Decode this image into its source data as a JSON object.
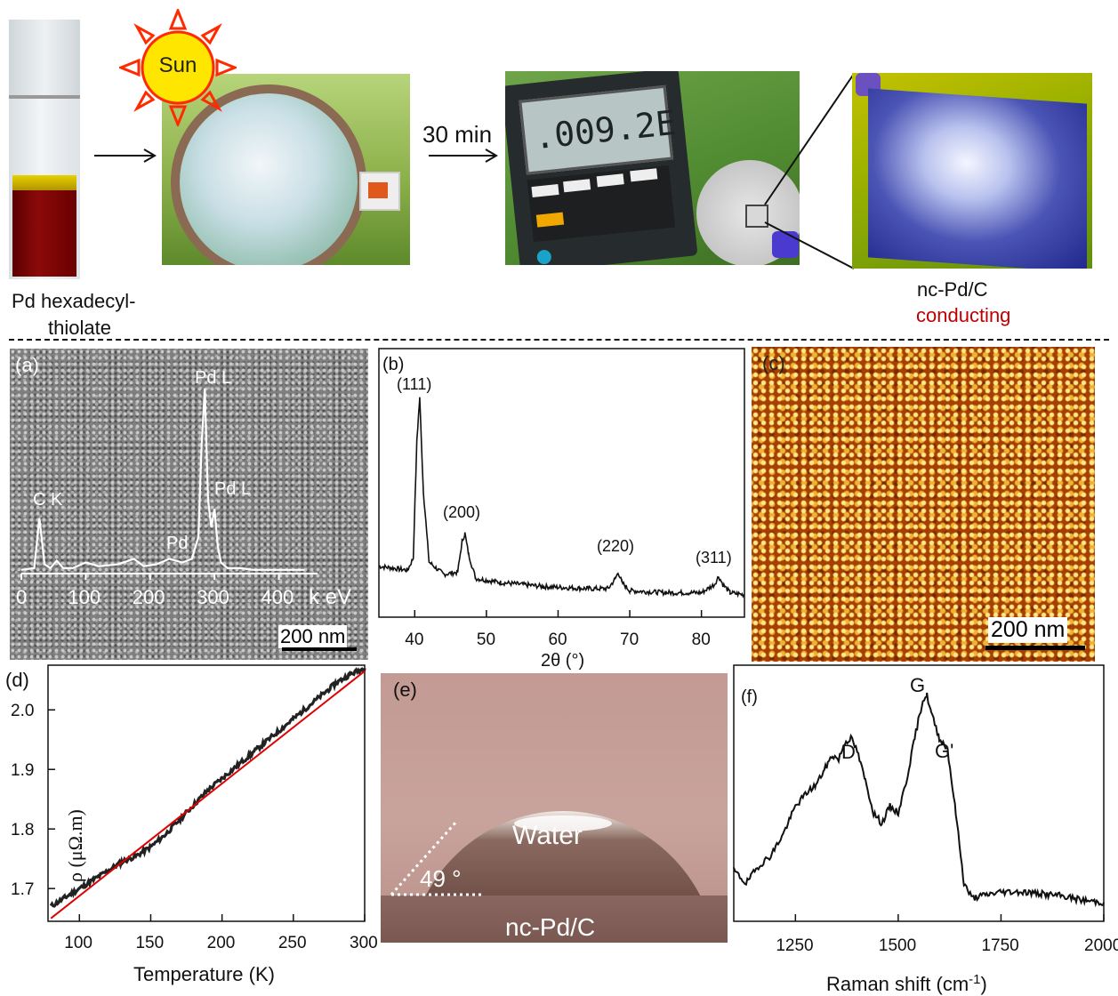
{
  "top_row": {
    "vial_caption_line1": "Pd hexadecyl-",
    "vial_caption_line2": "thiolate",
    "sun_label": "Sun",
    "time_label": "30 min",
    "meter_reading": ".009.2E",
    "film_caption_line1": "nc-Pd/C",
    "film_caption_line2": "conducting",
    "accent_color": "#c00000"
  },
  "panel_a": {
    "label": "(a)",
    "scalebar": "200 nm",
    "peak_labels": [
      "C K",
      "Pd L",
      "Pd L",
      "Pd"
    ],
    "x_ticks": [
      "0",
      "100",
      "200",
      "300",
      "400"
    ],
    "x_unit": "k eV"
  },
  "panel_b": {
    "label": "(b)",
    "xlabel": "2θ (°)",
    "peak_labels": [
      "(111)",
      "(200)",
      "(220)",
      "(311)"
    ]
  },
  "panel_c": {
    "label": "(c)",
    "scalebar": "200 nm"
  },
  "panel_d": {
    "label": "(d)",
    "xlabel": "Temperature (K)",
    "ylabel": "ρ (μΩ.m)"
  },
  "panel_e": {
    "label": "(e)",
    "water_label": "Water",
    "angle_label": "49 °",
    "substrate_label": "nc-Pd/C"
  },
  "panel_f": {
    "label": "(f)",
    "xlabel": "Raman shift (cm-1)",
    "xlabel_main": "Raman shift (cm",
    "xlabel_sup": "-1",
    "xlabel_end": ")",
    "peak_labels": [
      "D",
      "G",
      "G'"
    ]
  },
  "chart_data": [
    {
      "type": "line",
      "panel": "(a)",
      "xlabel": "k eV",
      "x_ticks": [
        0,
        100,
        200,
        300,
        400
      ],
      "xlim": [
        0,
        460
      ],
      "series": [
        {
          "x": [
            0,
            20,
            28,
            36,
            45,
            55,
            65,
            80,
            100,
            120,
            150,
            175,
            190,
            210,
            230,
            250,
            265,
            275,
            280,
            285,
            290,
            295,
            300,
            305,
            310,
            320,
            340,
            360,
            400,
            440
          ],
          "values": [
            2,
            3,
            30,
            5,
            3,
            7,
            3,
            3,
            6,
            4,
            5,
            8,
            4,
            5,
            8,
            6,
            8,
            20,
            70,
            100,
            40,
            25,
            35,
            15,
            6,
            3,
            3,
            2,
            2,
            2
          ]
        }
      ],
      "annotations": [
        "C K",
        "Pd L",
        "Pd L",
        "Pd"
      ]
    },
    {
      "type": "line",
      "panel": "(b)",
      "xlabel": "2θ (°)",
      "x_ticks": [
        40,
        50,
        60,
        70,
        80
      ],
      "xlim": [
        35,
        86
      ],
      "series": [
        {
          "x": [
            35,
            37,
            39,
            39.8,
            40.3,
            40.7,
            41.2,
            42,
            44,
            46,
            46.6,
            47,
            47.5,
            48.5,
            52,
            58,
            64,
            67,
            68,
            68.4,
            68.9,
            70,
            75,
            80,
            81.8,
            82.4,
            83,
            84,
            86
          ],
          "values": [
            18,
            17,
            16,
            22,
            80,
            100,
            55,
            20,
            14,
            15,
            30,
            34,
            24,
            12,
            10,
            8,
            7,
            7,
            12,
            15,
            10,
            6,
            5,
            5,
            9,
            13,
            9,
            5,
            4
          ]
        }
      ],
      "annotations": [
        "(111)",
        "(200)",
        "(220)",
        "(311)"
      ]
    },
    {
      "type": "line",
      "panel": "(d)",
      "xlabel": "Temperature (K)",
      "ylabel": "ρ (μΩ.m)",
      "x_ticks": [
        100,
        150,
        200,
        250,
        300
      ],
      "y_ticks": [
        1.7,
        1.8,
        1.9,
        2.0
      ],
      "xlim": [
        78,
        300
      ],
      "ylim": [
        1.645,
        2.075
      ],
      "series": [
        {
          "x": [
            80,
            90,
            100,
            110,
            120,
            130,
            140,
            150,
            160,
            170,
            180,
            190,
            200,
            210,
            220,
            230,
            240,
            250,
            260,
            270,
            280,
            290,
            300
          ],
          "values": [
            1.67,
            1.685,
            1.7,
            1.715,
            1.73,
            1.745,
            1.755,
            1.77,
            1.79,
            1.815,
            1.84,
            1.865,
            1.885,
            1.905,
            1.925,
            1.945,
            1.965,
            1.985,
            2.005,
            2.025,
            2.045,
            2.06,
            2.07
          ]
        },
        {
          "x": [
            80,
            300
          ],
          "values": [
            1.65,
            2.065
          ]
        }
      ]
    },
    {
      "type": "line",
      "panel": "(f)",
      "xlabel": "Raman shift (cm-1)",
      "x_ticks": [
        1250,
        1500,
        1750,
        2000
      ],
      "xlim": [
        1100,
        2000
      ],
      "series": [
        {
          "x": [
            1100,
            1130,
            1160,
            1190,
            1220,
            1250,
            1280,
            1300,
            1320,
            1340,
            1355,
            1370,
            1385,
            1400,
            1420,
            1440,
            1460,
            1480,
            1500,
            1520,
            1540,
            1560,
            1570,
            1580,
            1600,
            1620,
            1640,
            1660,
            1680,
            1700,
            1750,
            1800,
            1850,
            1900,
            1950,
            2000
          ],
          "values": [
            18,
            12,
            20,
            25,
            35,
            48,
            55,
            58,
            65,
            72,
            70,
            78,
            80,
            74,
            60,
            45,
            40,
            48,
            45,
            60,
            80,
            98,
            100,
            92,
            80,
            75,
            45,
            12,
            5,
            6,
            8,
            8,
            7,
            6,
            4,
            3
          ]
        }
      ],
      "annotations": [
        "D",
        "G",
        "G'"
      ]
    }
  ]
}
